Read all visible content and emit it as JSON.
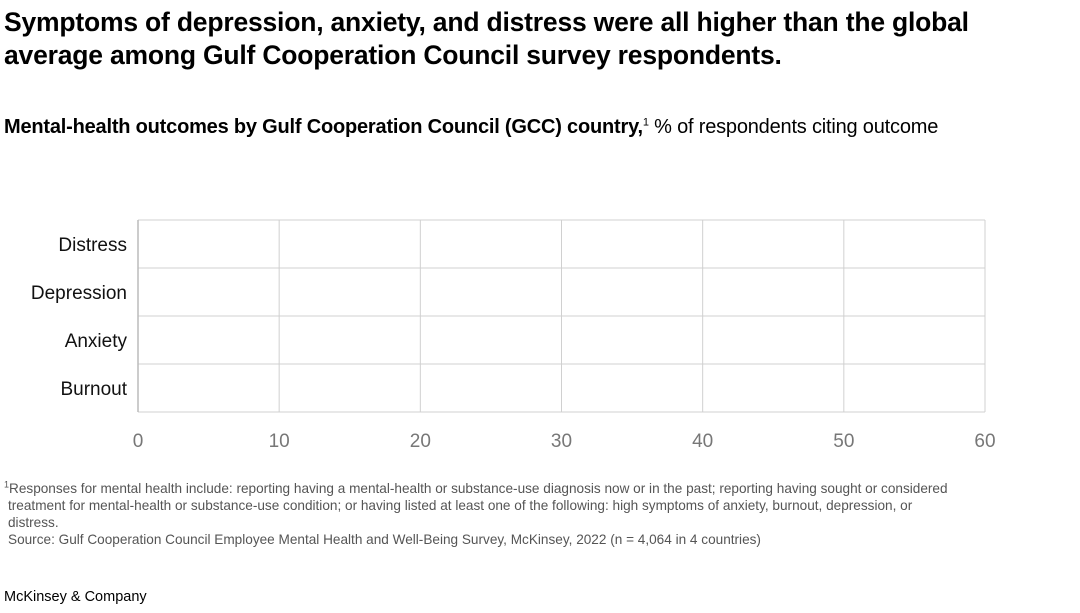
{
  "header": {
    "title": "Symptoms of depression, anxiety, and distress were all higher than the global average among Gulf Cooperation Council survey respondents.",
    "subtitle_bold": "Mental-health outcomes by Gulf Cooperation Council (GCC) country,",
    "subtitle_sup": "1",
    "subtitle_rest": " % of respondents citing outcome"
  },
  "chart_data": {
    "type": "bar",
    "orientation": "horizontal",
    "categories": [
      "Distress",
      "Depression",
      "Anxiety",
      "Burnout"
    ],
    "series": [],
    "xlim": [
      0,
      60
    ],
    "xticks": [
      "0",
      "10",
      "20",
      "30",
      "40",
      "50",
      "60"
    ],
    "grid": true,
    "grid_color": "#d0d0d0"
  },
  "footnotes": {
    "note_marker": "1",
    "note_line1": "Responses for mental health include: reporting having a mental-health or substance-use diagnosis now or in the past; reporting having sought or considered",
    "note_line2": "treatment for mental-health or substance-use condition; or having listed at least one of the following: high symptoms of anxiety, burnout, depression, or",
    "note_line3": "distress.",
    "source": "Source: Gulf Cooperation Council Employee Mental Health and Well-Being Survey, McKinsey, 2022 (n = 4,064 in 4 countries)"
  },
  "brand": "McKinsey & Company"
}
